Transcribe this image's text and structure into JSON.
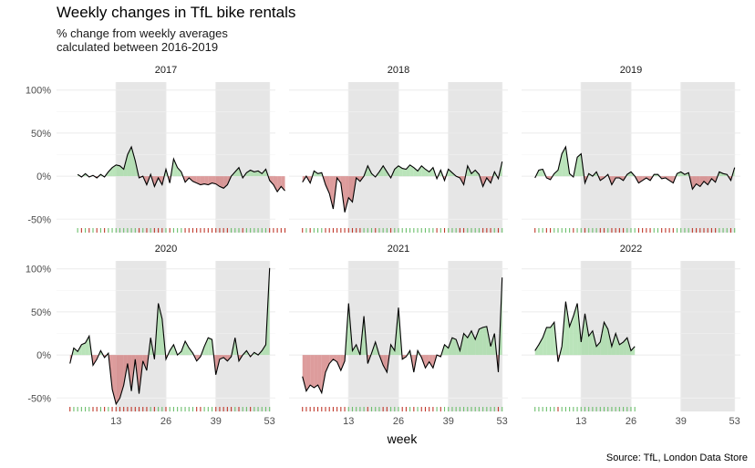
{
  "title": "Weekly changes in TfL bike rentals",
  "subtitle": "% change from weekly averages\ncalculated between 2016-2019",
  "caption": "Source: TfL, London Data Store",
  "chart_data": {
    "type": "area",
    "xlabel": "week",
    "ylabel": "",
    "x_ticks": [
      13,
      26,
      39,
      53
    ],
    "y_ticks": [
      -50,
      0,
      50,
      100
    ],
    "y_tick_labels": [
      "-50%",
      "0%",
      "50%",
      "100%"
    ],
    "xlim": [
      1,
      53
    ],
    "ylim": [
      -55,
      105
    ],
    "shaded_week_ranges": [
      [
        13,
        26
      ],
      [
        39,
        53
      ]
    ],
    "colors": {
      "positive_fill": "#a3dba3",
      "negative_fill": "#d27b7b",
      "positive_rug": "#6cbf6c",
      "negative_rug": "#c0392b",
      "line": "#000000",
      "shade": "#e6e6e6",
      "grid": "#ebebeb"
    },
    "panels": [
      {
        "year": "2017",
        "weeks_start": 3,
        "values": [
          2,
          -1,
          3,
          -1,
          1,
          -2,
          2,
          -1,
          5,
          10,
          13,
          12,
          8,
          25,
          34,
          18,
          -2,
          0,
          -10,
          2,
          -12,
          -2,
          -10,
          8,
          -8,
          20,
          10,
          5,
          -7,
          -2,
          -6,
          -8,
          -10,
          -9,
          -10,
          -8,
          -9,
          -12,
          -14,
          -10,
          0,
          5,
          10,
          -2,
          4,
          7,
          5,
          6,
          3,
          8,
          -5,
          -10,
          -18,
          -12,
          -17
        ]
      },
      {
        "year": "2018",
        "weeks_start": 1,
        "values": [
          -7,
          0,
          -8,
          6,
          3,
          4,
          -10,
          -20,
          -38,
          -2,
          -8,
          -42,
          -25,
          -30,
          -2,
          -6,
          0,
          12,
          3,
          -1,
          5,
          12,
          5,
          -2,
          8,
          12,
          9,
          8,
          13,
          10,
          6,
          12,
          8,
          5,
          10,
          -3,
          7,
          -5,
          8,
          4,
          0,
          -2,
          -10,
          12,
          3,
          7,
          2,
          -12,
          -2,
          -8,
          5,
          -3,
          17
        ]
      },
      {
        "year": "2019",
        "weeks_start": 1,
        "values": [
          -2,
          7,
          8,
          -2,
          -4,
          3,
          7,
          26,
          34,
          3,
          -1,
          22,
          26,
          -8,
          3,
          0,
          5,
          -5,
          -2,
          2,
          -10,
          -2,
          -2,
          -5,
          2,
          5,
          0,
          -8,
          -5,
          -2,
          -5,
          2,
          2,
          -3,
          -2,
          -5,
          -8,
          3,
          5,
          2,
          4,
          -15,
          -9,
          -12,
          -6,
          -10,
          -3,
          -7,
          5,
          3,
          2,
          -5,
          10
        ]
      },
      {
        "year": "2020",
        "weeks_start": 1,
        "values": [
          -10,
          8,
          4,
          12,
          14,
          22,
          -12,
          -5,
          5,
          -3,
          2,
          -40,
          -57,
          -50,
          -35,
          -10,
          -42,
          -5,
          -45,
          -7,
          -18,
          20,
          -5,
          60,
          42,
          -5,
          5,
          12,
          0,
          4,
          16,
          8,
          2,
          -7,
          -2,
          10,
          20,
          18,
          -23,
          -5,
          -3,
          -7,
          -2,
          20,
          -7,
          0,
          5,
          -2,
          3,
          0,
          5,
          12,
          101
        ]
      },
      {
        "year": "2021",
        "weeks_start": 1,
        "values": [
          -25,
          -42,
          -35,
          -38,
          -35,
          -44,
          -20,
          -10,
          -5,
          -8,
          -18,
          -7,
          60,
          5,
          12,
          0,
          45,
          -10,
          2,
          15,
          0,
          -12,
          -20,
          12,
          5,
          55,
          -5,
          -2,
          5,
          -20,
          5,
          -3,
          -15,
          -8,
          -15,
          0,
          -2,
          12,
          8,
          20,
          18,
          5,
          25,
          20,
          28,
          18,
          30,
          32,
          33,
          10,
          25,
          -20,
          90
        ]
      },
      {
        "year": "2022",
        "weeks_start": 1,
        "values": [
          5,
          12,
          20,
          32,
          32,
          38,
          -8,
          10,
          62,
          33,
          45,
          60,
          15,
          48,
          22,
          28,
          10,
          15,
          38,
          30,
          10,
          25,
          12,
          15,
          20,
          5,
          10
        ]
      }
    ]
  }
}
